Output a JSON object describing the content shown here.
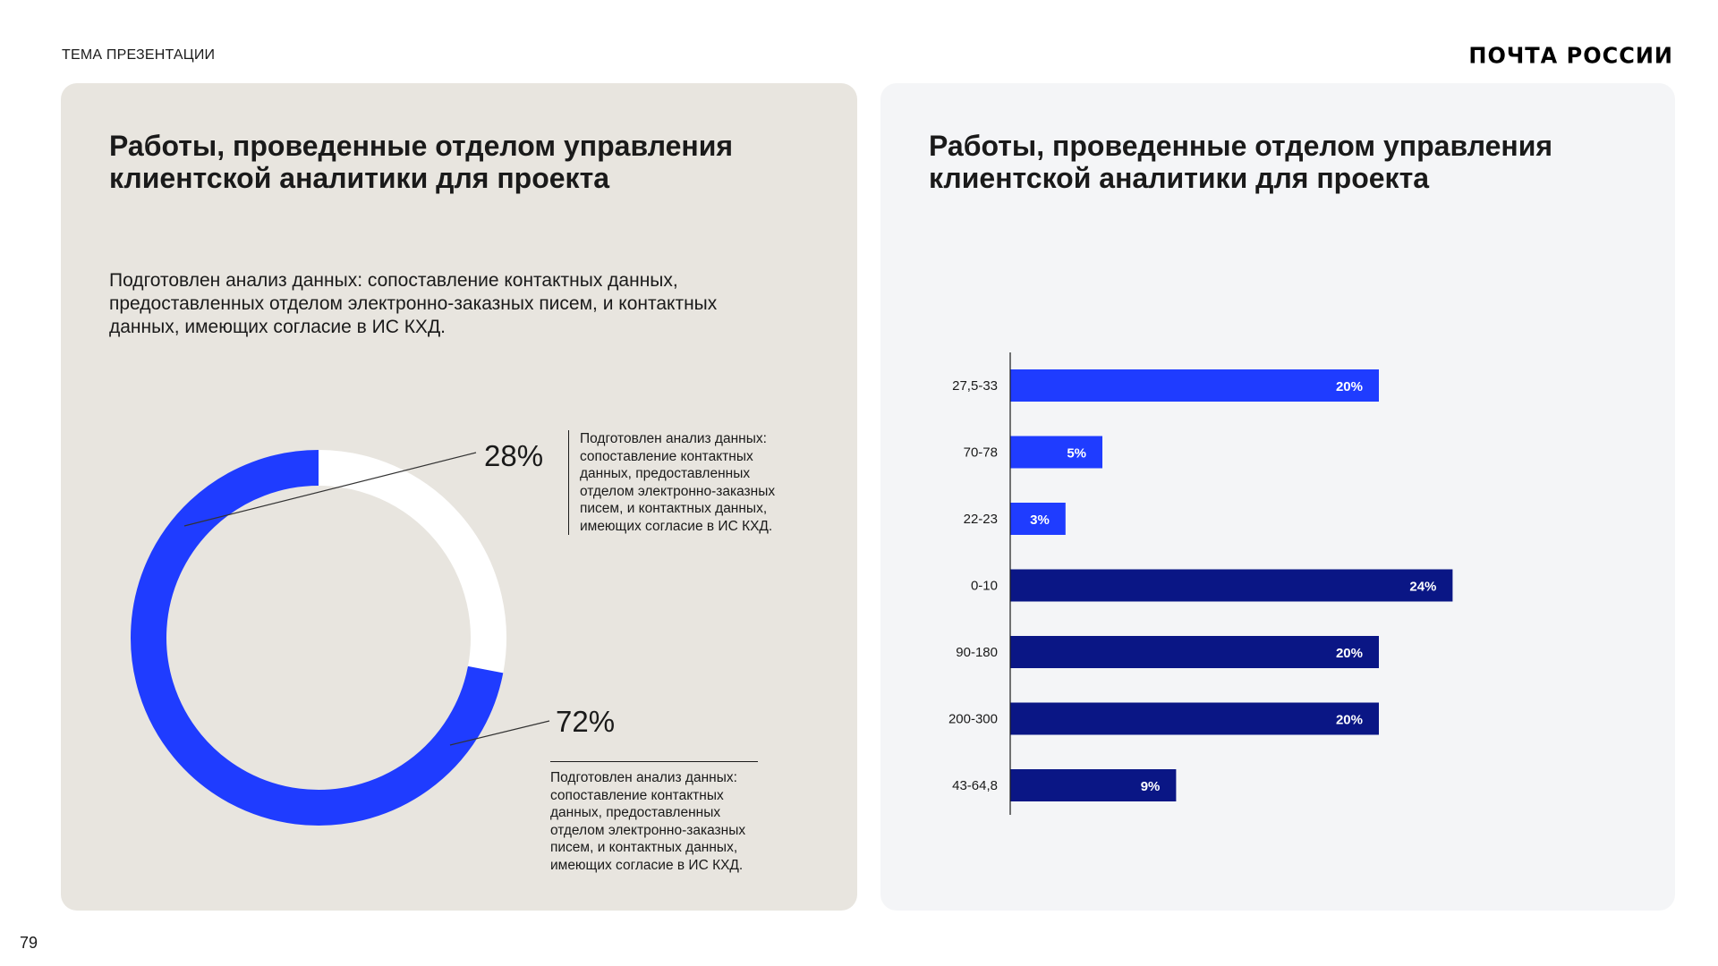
{
  "header": {
    "topic": "ТЕМА ПРЕЗЕНТАЦИИ",
    "logo": "ПОЧТА РОССИИ"
  },
  "page_number": "79",
  "left_card": {
    "title": "Работы, проведенные отделом управления клиентской аналитики для проекта",
    "description": "Подготовлен анализ данных: сопоставление контактных данных, предоставленных отделом электронно-заказных писем, и контактных данных, имеющих согласие в ИС КХД.",
    "segments": [
      {
        "label": "28%",
        "note": "Подготовлен анализ данных: сопоставление контактных данных, предоставленных отделом электронно-заказных писем, и контактных данных, имеющих согласие в ИС КХД."
      },
      {
        "label": "72%",
        "note": "Подготовлен анализ данных: сопоставление контактных данных, предоставленных отделом электронно-заказных писем, и контактных данных, имеющих согласие в ИС КХД."
      }
    ]
  },
  "right_card": {
    "title": "Работы, проведенные отделом управления клиентской аналитики для проекта"
  },
  "colors": {
    "bright_blue": "#1f3cff",
    "dark_blue": "#0a1685",
    "white": "#ffffff"
  },
  "chart_data": [
    {
      "type": "pie",
      "subtype": "donut",
      "categories": [
        "28%",
        "72%"
      ],
      "values": [
        28,
        72
      ],
      "colors": [
        "#ffffff",
        "#1f3cff"
      ]
    },
    {
      "type": "bar",
      "orientation": "horizontal",
      "categories": [
        "27,5-33",
        "70-78",
        "22-23",
        "0-10",
        "90-180",
        "200-300",
        "43-64,8"
      ],
      "values": [
        20,
        5,
        3,
        24,
        20,
        20,
        9
      ],
      "value_labels": [
        "20%",
        "5%",
        "3%",
        "24%",
        "20%",
        "20%",
        "9%"
      ],
      "bar_colors": [
        "#1f3cff",
        "#1f3cff",
        "#1f3cff",
        "#0a1685",
        "#0a1685",
        "#0a1685",
        "#0a1685"
      ],
      "xlim": [
        0,
        24
      ]
    }
  ]
}
